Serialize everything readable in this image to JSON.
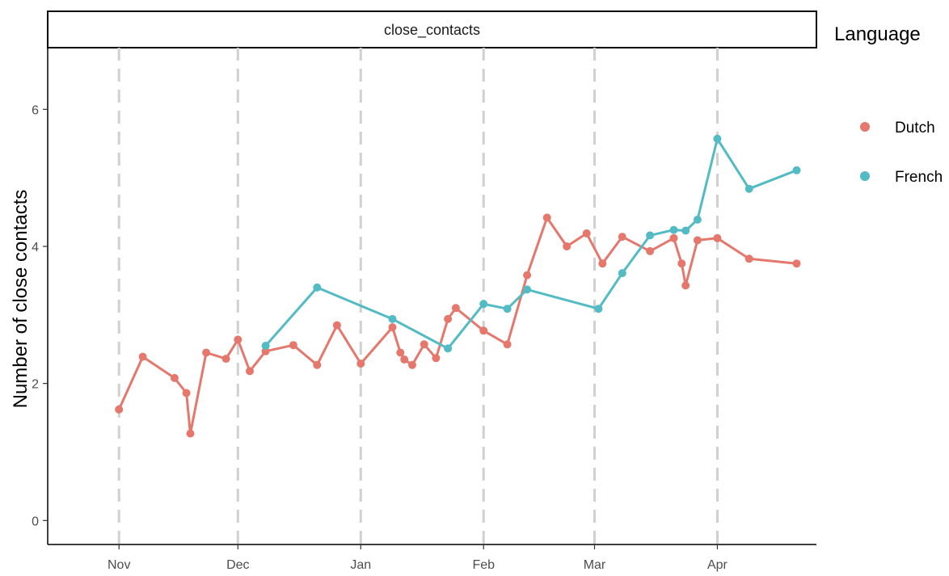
{
  "chart_data": {
    "type": "line",
    "facet_label": "close_contacts",
    "ylabel": "Number of close contacts",
    "xlabel": "",
    "xlim": [
      "2020-10-14",
      "2021-04-26"
    ],
    "ylim": [
      -0.35,
      6.9
    ],
    "y_ticks": [
      0,
      2,
      4,
      6
    ],
    "x_ticks": [
      {
        "date": "2020-11-01",
        "label": "Nov"
      },
      {
        "date": "2020-12-01",
        "label": "Dec"
      },
      {
        "date": "2021-01-01",
        "label": "Jan"
      },
      {
        "date": "2021-02-01",
        "label": "Feb"
      },
      {
        "date": "2021-03-01",
        "label": "Mar"
      },
      {
        "date": "2021-04-01",
        "label": "Apr"
      }
    ],
    "vlines": [
      "2020-11-01",
      "2020-12-01",
      "2021-01-01",
      "2021-02-01",
      "2021-03-01",
      "2021-04-01"
    ],
    "grid": false,
    "legend": {
      "title": "Language",
      "position": "right"
    },
    "series": [
      {
        "name": "Dutch",
        "color": "#E5776C",
        "points": [
          {
            "x": "2020-11-01",
            "y": 1.62
          },
          {
            "x": "2020-11-07",
            "y": 2.39
          },
          {
            "x": "2020-11-15",
            "y": 2.08
          },
          {
            "x": "2020-11-18",
            "y": 1.86
          },
          {
            "x": "2020-11-19",
            "y": 1.27
          },
          {
            "x": "2020-11-23",
            "y": 2.45
          },
          {
            "x": "2020-11-28",
            "y": 2.36
          },
          {
            "x": "2020-12-01",
            "y": 2.64
          },
          {
            "x": "2020-12-04",
            "y": 2.18
          },
          {
            "x": "2020-12-08",
            "y": 2.47
          },
          {
            "x": "2020-12-15",
            "y": 2.56
          },
          {
            "x": "2020-12-21",
            "y": 2.27
          },
          {
            "x": "2020-12-26",
            "y": 2.85
          },
          {
            "x": "2021-01-01",
            "y": 2.29
          },
          {
            "x": "2021-01-09",
            "y": 2.82
          },
          {
            "x": "2021-01-11",
            "y": 2.45
          },
          {
            "x": "2021-01-12",
            "y": 2.35
          },
          {
            "x": "2021-01-14",
            "y": 2.27
          },
          {
            "x": "2021-01-17",
            "y": 2.57
          },
          {
            "x": "2021-01-20",
            "y": 2.37
          },
          {
            "x": "2021-01-23",
            "y": 2.94
          },
          {
            "x": "2021-01-25",
            "y": 3.1
          },
          {
            "x": "2021-02-01",
            "y": 2.77
          },
          {
            "x": "2021-02-07",
            "y": 2.57
          },
          {
            "x": "2021-02-12",
            "y": 3.58
          },
          {
            "x": "2021-02-17",
            "y": 4.42
          },
          {
            "x": "2021-02-22",
            "y": 4.0
          },
          {
            "x": "2021-02-27",
            "y": 4.19
          },
          {
            "x": "2021-03-03",
            "y": 3.75
          },
          {
            "x": "2021-03-08",
            "y": 4.14
          },
          {
            "x": "2021-03-15",
            "y": 3.93
          },
          {
            "x": "2021-03-21",
            "y": 4.12
          },
          {
            "x": "2021-03-23",
            "y": 3.75
          },
          {
            "x": "2021-03-24",
            "y": 3.43
          },
          {
            "x": "2021-03-27",
            "y": 4.09
          },
          {
            "x": "2021-04-01",
            "y": 4.12
          },
          {
            "x": "2021-04-09",
            "y": 3.82
          },
          {
            "x": "2021-04-21",
            "y": 3.75
          }
        ]
      },
      {
        "name": "French",
        "color": "#52BBC4",
        "points": [
          {
            "x": "2020-12-08",
            "y": 2.55
          },
          {
            "x": "2020-12-21",
            "y": 3.4
          },
          {
            "x": "2021-01-09",
            "y": 2.94
          },
          {
            "x": "2021-01-23",
            "y": 2.51
          },
          {
            "x": "2021-02-01",
            "y": 3.16
          },
          {
            "x": "2021-02-07",
            "y": 3.09
          },
          {
            "x": "2021-02-12",
            "y": 3.37
          },
          {
            "x": "2021-03-02",
            "y": 3.09
          },
          {
            "x": "2021-03-08",
            "y": 3.61
          },
          {
            "x": "2021-03-15",
            "y": 4.16
          },
          {
            "x": "2021-03-21",
            "y": 4.24
          },
          {
            "x": "2021-03-24",
            "y": 4.23
          },
          {
            "x": "2021-03-27",
            "y": 4.39
          },
          {
            "x": "2021-04-01",
            "y": 5.57
          },
          {
            "x": "2021-04-09",
            "y": 4.84
          },
          {
            "x": "2021-04-21",
            "y": 5.11
          }
        ]
      }
    ]
  }
}
